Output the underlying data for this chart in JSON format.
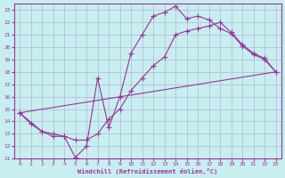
{
  "xlabel": "Windchill (Refroidissement éolien,°C)",
  "bg_color": "#c8eef0",
  "grid_color": "#b0b8d8",
  "line_color": "#993399",
  "xlim": [
    -0.5,
    23.5
  ],
  "ylim": [
    11,
    23.5
  ],
  "xticks": [
    0,
    1,
    2,
    3,
    4,
    5,
    6,
    7,
    8,
    9,
    10,
    11,
    12,
    13,
    14,
    15,
    16,
    17,
    18,
    19,
    20,
    21,
    22,
    23
  ],
  "yticks": [
    11,
    12,
    13,
    14,
    15,
    16,
    17,
    18,
    19,
    20,
    21,
    22,
    23
  ],
  "line1_x": [
    0,
    1,
    2,
    3,
    4,
    5,
    6,
    7,
    8,
    9,
    10,
    11,
    12,
    13,
    14,
    15,
    16,
    17,
    18,
    19,
    20,
    21,
    22,
    23
  ],
  "line1_y": [
    14.7,
    13.8,
    13.2,
    12.8,
    12.8,
    11.1,
    12.0,
    17.5,
    13.5,
    16.0,
    19.5,
    21.0,
    22.5,
    22.8,
    23.3,
    22.3,
    22.5,
    22.2,
    21.5,
    21.1,
    20.1,
    19.4,
    19.0,
    18.0
  ],
  "line2_x": [
    0,
    2,
    3,
    4,
    5,
    6,
    7,
    8,
    9,
    10,
    11,
    12,
    13,
    14,
    15,
    16,
    17,
    18,
    19,
    20,
    21,
    22,
    23
  ],
  "line2_y": [
    14.7,
    13.2,
    13.0,
    12.8,
    12.5,
    12.5,
    13.0,
    14.2,
    15.0,
    16.5,
    17.5,
    18.5,
    19.2,
    21.0,
    21.3,
    21.5,
    21.7,
    22.0,
    21.2,
    20.2,
    19.5,
    19.1,
    18.0
  ],
  "line3_x": [
    0,
    23
  ],
  "line3_y": [
    14.7,
    18.0
  ]
}
